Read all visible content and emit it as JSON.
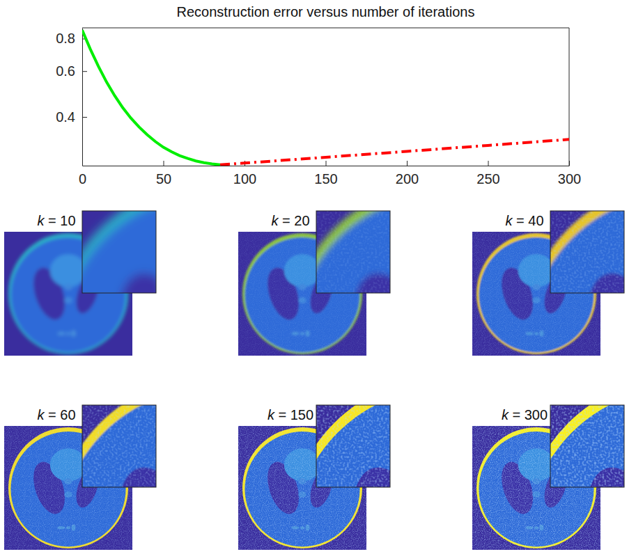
{
  "chart_data": {
    "type": "line",
    "title": "Reconstruction error versus number of iterations",
    "log": "y",
    "grid": false,
    "xlim": [
      0,
      300
    ],
    "xticks": [
      0,
      50,
      100,
      150,
      200,
      250,
      300
    ],
    "ylim": [
      0.26,
      0.88
    ],
    "yticks": [
      0.4,
      0.6,
      0.8
    ],
    "series": [
      {
        "color": "#00ee00",
        "line_style": "solid",
        "x": [
          0,
          5,
          10,
          15,
          20,
          25,
          30,
          35,
          40,
          45,
          50,
          55,
          60,
          65,
          70,
          75,
          80,
          85
        ],
        "values": [
          0.862,
          0.729,
          0.626,
          0.545,
          0.483,
          0.434,
          0.396,
          0.366,
          0.342,
          0.322,
          0.306,
          0.294,
          0.284,
          0.277,
          0.271,
          0.267,
          0.264,
          0.262
        ]
      },
      {
        "color": "#ff0000",
        "line_style": "dashdot",
        "x": [
          85,
          100,
          150,
          200,
          250,
          300
        ],
        "values": [
          0.262,
          0.266,
          0.28,
          0.295,
          0.311,
          0.328
        ]
      }
    ]
  },
  "panels": [
    {
      "title": "k = 10"
    },
    {
      "title": "k = 20"
    },
    {
      "title": "k = 40"
    },
    {
      "title": "k = 60"
    },
    {
      "title": "k = 150"
    },
    {
      "title": "k = 300"
    }
  ]
}
